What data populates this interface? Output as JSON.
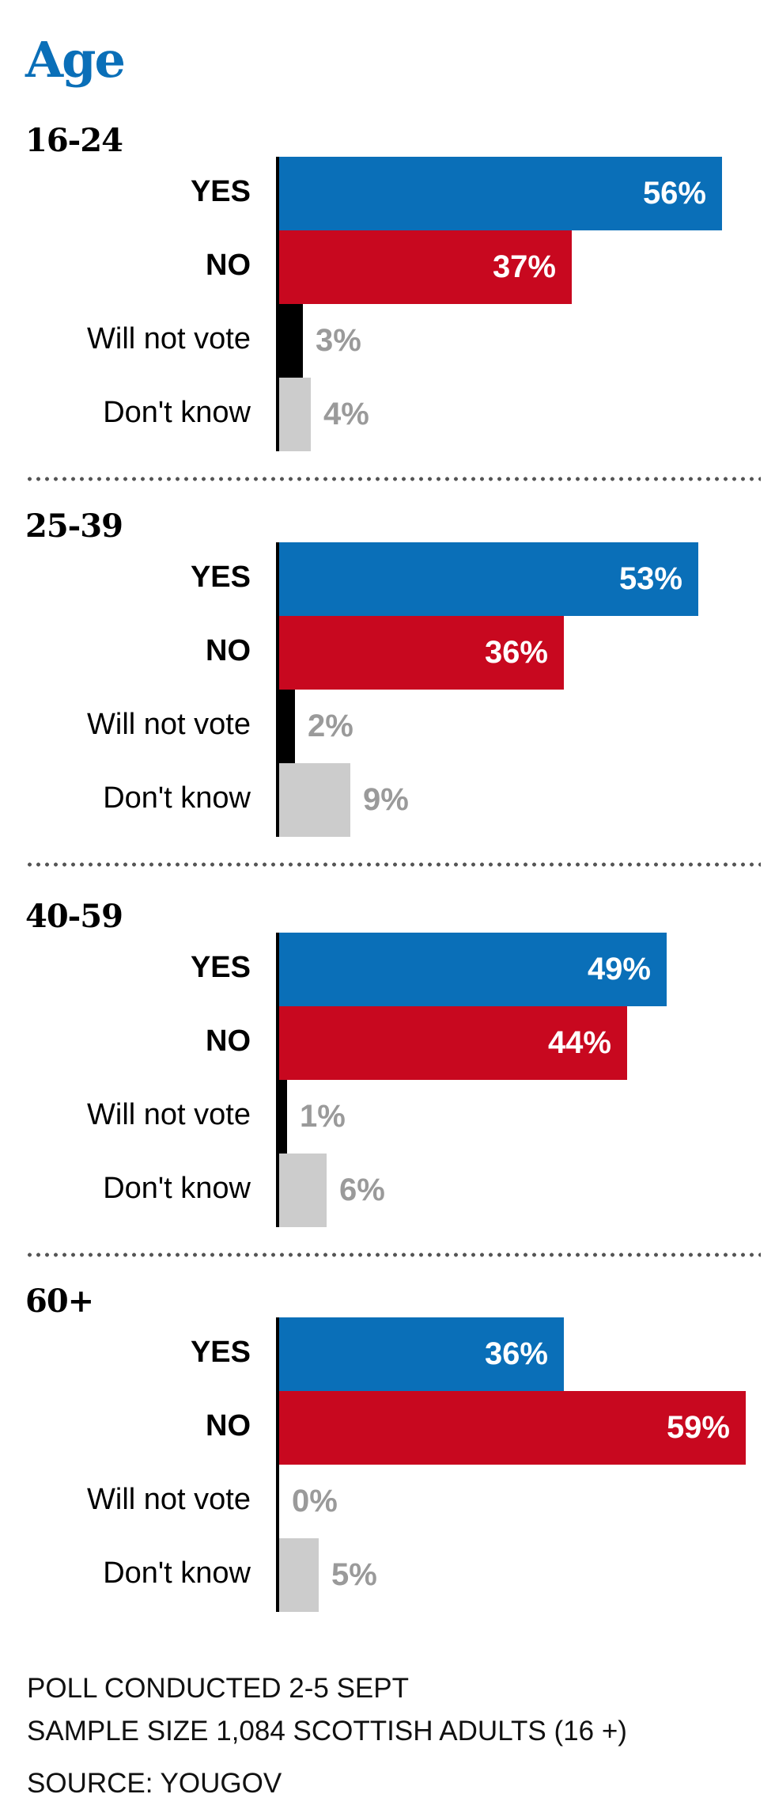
{
  "chart_data": {
    "type": "bar",
    "orientation": "horizontal",
    "title": "Age",
    "categories": [
      "YES",
      "NO",
      "Will not vote",
      "Don't know"
    ],
    "unit": "%",
    "xlim": [
      0,
      60
    ],
    "groups": [
      {
        "name": "16-24",
        "values": [
          56,
          37,
          3,
          4
        ],
        "labels": [
          "56%",
          "37%",
          "3%",
          "4%"
        ]
      },
      {
        "name": "25-39",
        "values": [
          53,
          36,
          2,
          9
        ],
        "labels": [
          "53%",
          "36%",
          "2%",
          "9%"
        ]
      },
      {
        "name": "40-59",
        "values": [
          49,
          44,
          1,
          6
        ],
        "labels": [
          "49%",
          "44%",
          "1%",
          "6%"
        ]
      },
      {
        "name": "60+",
        "values": [
          36,
          59,
          0,
          5
        ],
        "labels": [
          "36%",
          "59%",
          "0%",
          "5%"
        ]
      }
    ],
    "colors": {
      "YES": "#0a6fb8",
      "NO": "#c8081f",
      "Will not vote": "#000000",
      "Don't know": "#cccccc",
      "outside_label": "#9a9a9a",
      "title": "#0a6fb8"
    }
  },
  "footer": {
    "line1": "POLL CONDUCTED 2-5 SEPT",
    "line2": "SAMPLE SIZE 1,084 SCOTTISH ADULTS (16 +)",
    "source": "SOURCE: YOUGOV"
  }
}
